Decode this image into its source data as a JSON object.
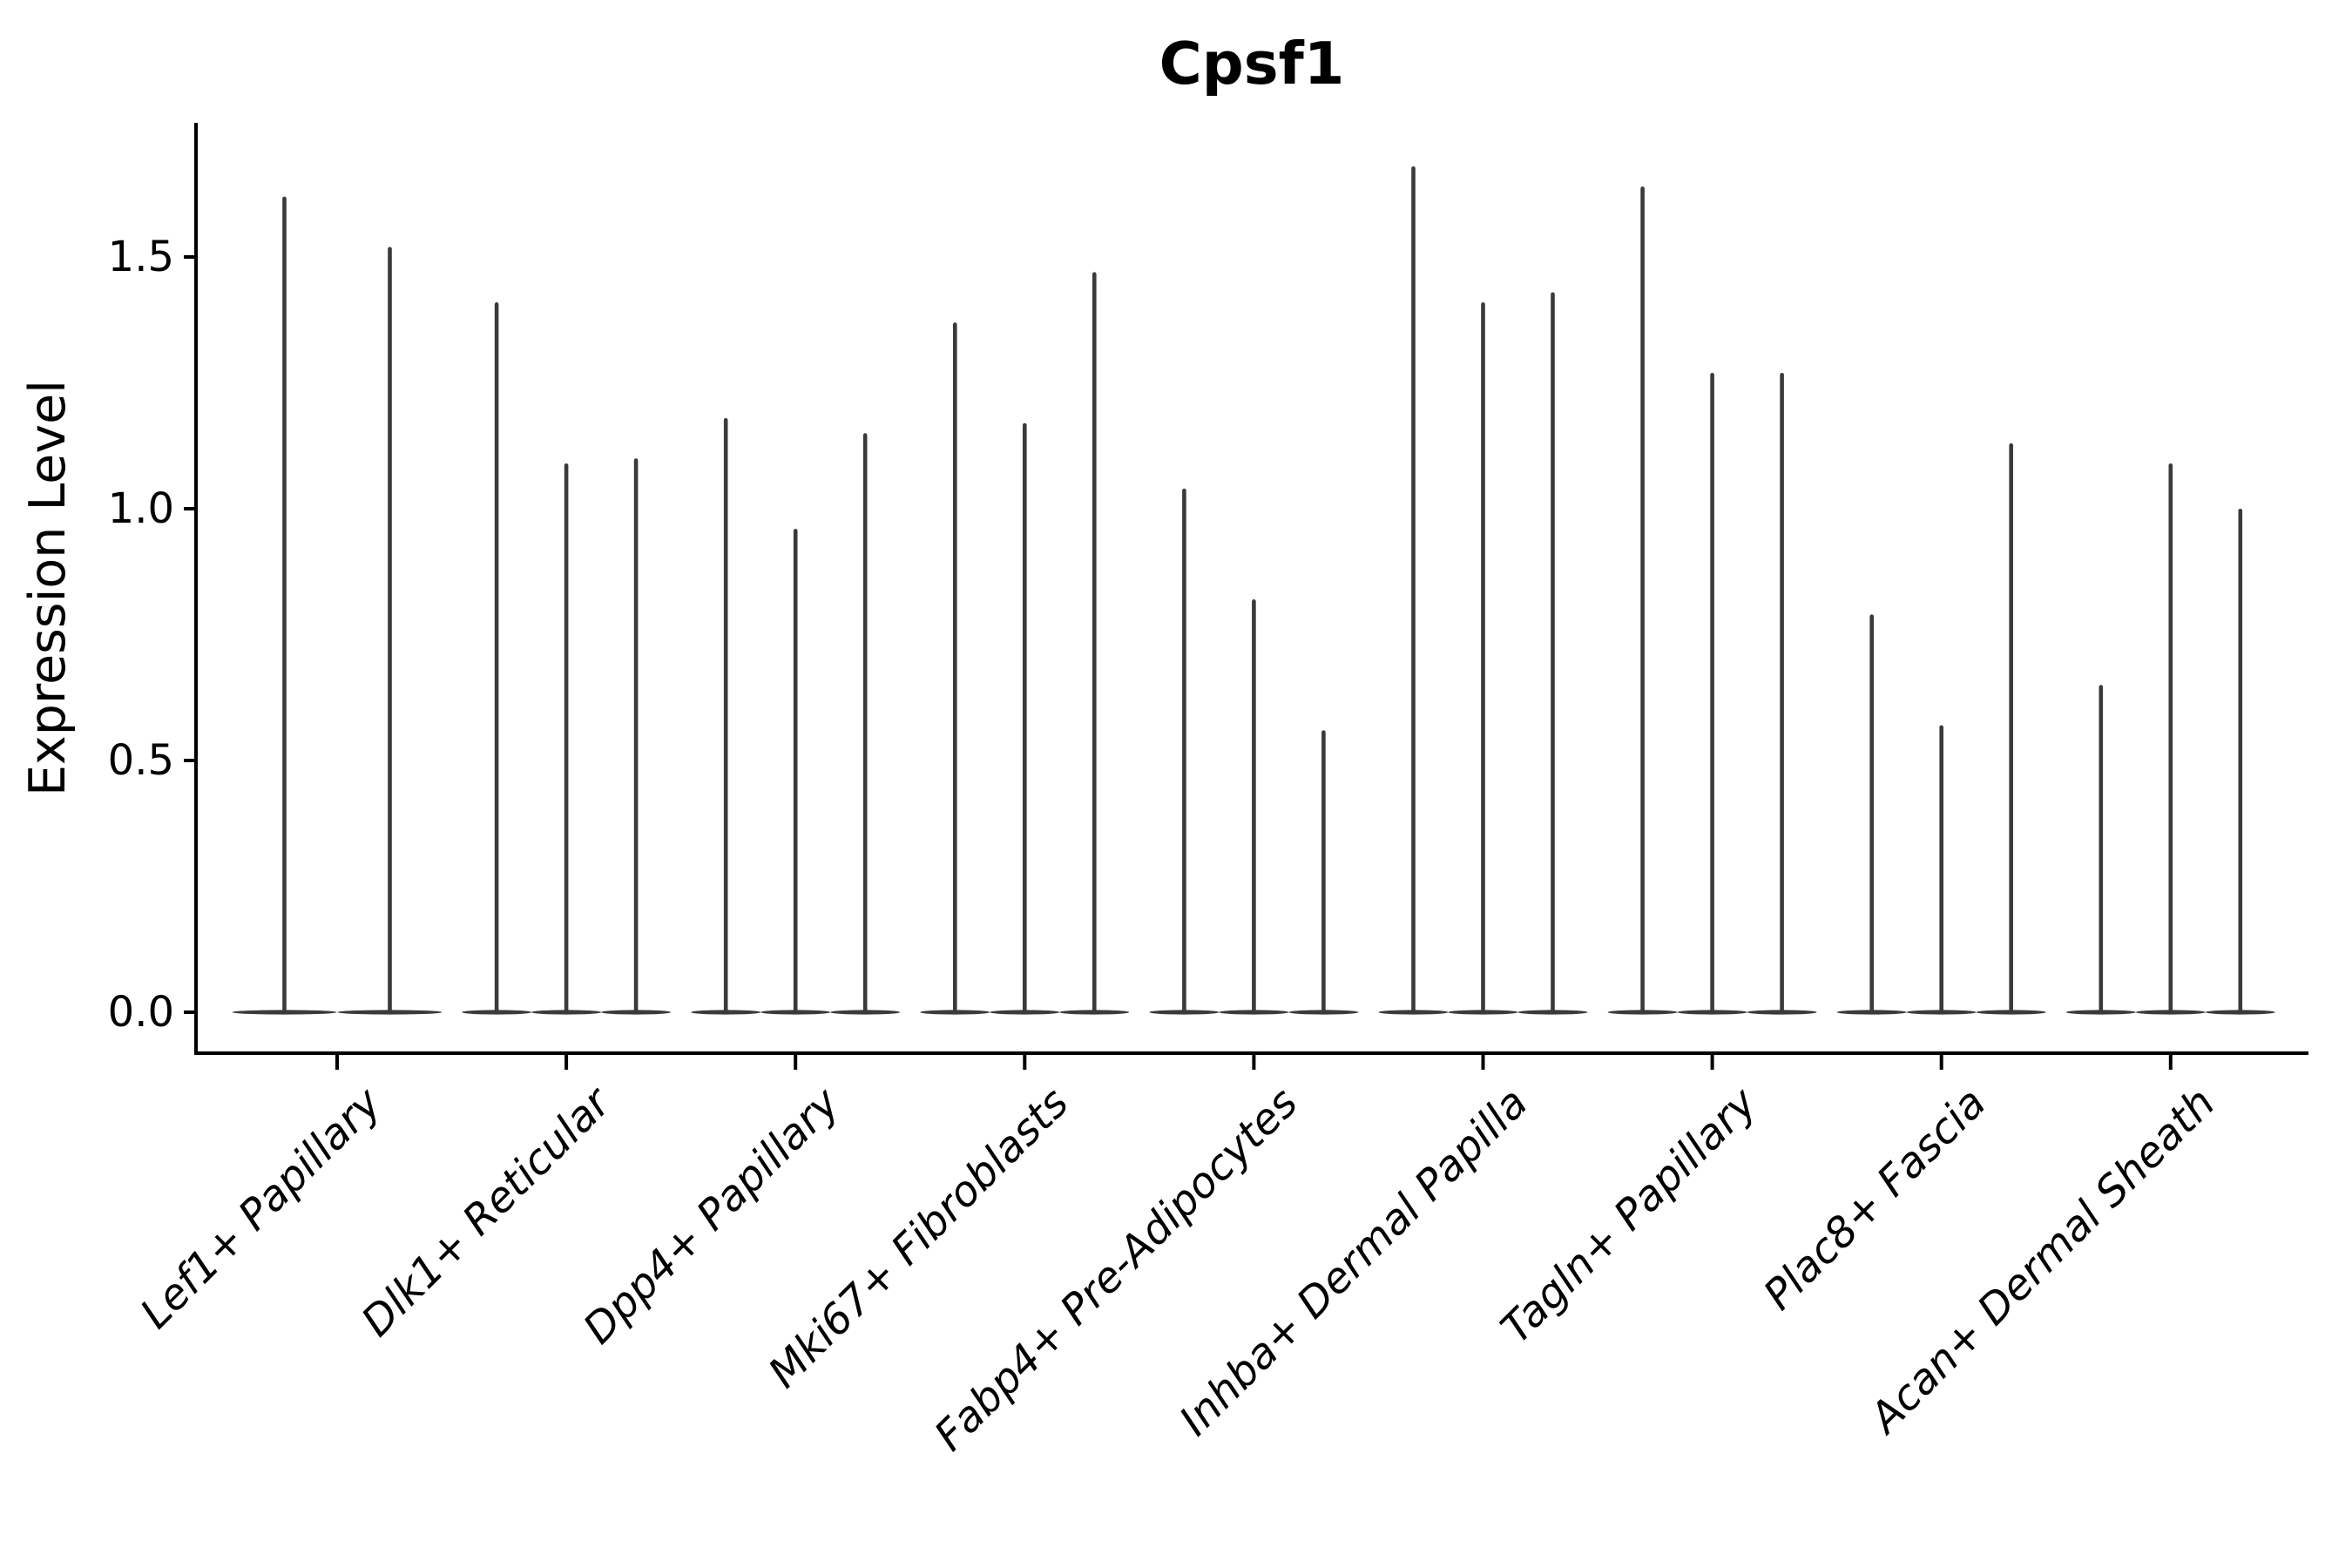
{
  "figure": {
    "title": "Cpsf1",
    "ylabel": "Expression Level"
  },
  "chart_data": {
    "type": "violin",
    "title": "Cpsf1",
    "xlabel": "",
    "ylabel": "Expression Level",
    "ylim": [
      -0.08,
      1.77
    ],
    "grid": false,
    "legend": "none",
    "ytick_values": [
      0.0,
      0.5,
      1.0,
      1.5
    ],
    "ytick_labels": [
      "0.0",
      "0.5",
      "1.0",
      "1.5"
    ],
    "categories": [
      "Lef1+ Papillary",
      "Dlk1+ Reticular",
      "Dpp4+ Papillary",
      "Mki67+ Fibroblasts",
      "Fabp4+ Pre-Adipocytes",
      "Inhba+ Dermal Papilla",
      "Tagln+ Papillary",
      "Plac8+ Fascia",
      "Acan+ Dermal Sheath"
    ],
    "series": [
      {
        "category": "Lef1+ Papillary",
        "violin_max_values": [
          1.62,
          1.52
        ],
        "violin_min": 0
      },
      {
        "category": "Dlk1+ Reticular",
        "violin_max_values": [
          1.41,
          1.09,
          1.1
        ],
        "violin_min": 0
      },
      {
        "category": "Dpp4+ Papillary",
        "violin_max_values": [
          1.18,
          0.96,
          1.15
        ],
        "violin_min": 0
      },
      {
        "category": "Mki67+ Fibroblasts",
        "violin_max_values": [
          1.37,
          1.17,
          1.47
        ],
        "violin_min": 0
      },
      {
        "category": "Fabp4+ Pre-Adipocytes",
        "violin_max_values": [
          1.04,
          0.82,
          0.56
        ],
        "violin_min": 0
      },
      {
        "category": "Inhba+ Dermal Papilla",
        "violin_max_values": [
          1.68,
          1.41,
          1.43
        ],
        "violin_min": 0
      },
      {
        "category": "Tagln+ Papillary",
        "violin_max_values": [
          1.64,
          1.27,
          1.27
        ],
        "violin_min": 0
      },
      {
        "category": "Plac8+ Fascia",
        "violin_max_values": [
          0.79,
          0.57,
          1.13
        ],
        "violin_min": 0
      },
      {
        "category": "Acan+ Dermal Sheath",
        "violin_max_values": [
          0.65,
          1.09,
          1.0
        ],
        "violin_min": 0
      }
    ],
    "colors": {
      "violin": "#3a3a3a",
      "axis": "#000000",
      "text": "#000000",
      "background": "#ffffff"
    },
    "notes": "Violins are extremely narrow: bulk of density at expression 0 (flat wide base) with a thin spike up to each max value."
  }
}
